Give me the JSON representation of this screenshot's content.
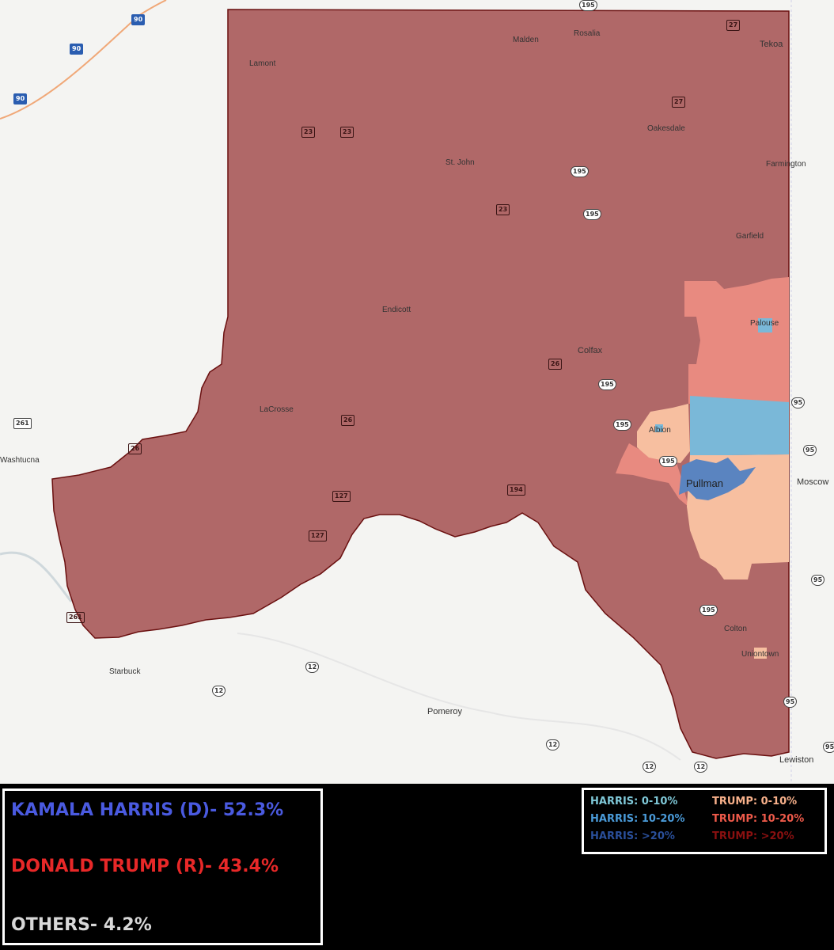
{
  "places": [
    {
      "name": "Lamont"
    },
    {
      "name": "Malden"
    },
    {
      "name": "Rosalia"
    },
    {
      "name": "Tekoa"
    },
    {
      "name": "Oakesdale"
    },
    {
      "name": "St. John"
    },
    {
      "name": "Farmington"
    },
    {
      "name": "Garfield"
    },
    {
      "name": "Endicott"
    },
    {
      "name": "Palouse"
    },
    {
      "name": "Colfax"
    },
    {
      "name": "LaCrosse"
    },
    {
      "name": "Albion"
    },
    {
      "name": "Pullman"
    },
    {
      "name": "Washtucna"
    },
    {
      "name": "Moscow"
    },
    {
      "name": "Colton"
    },
    {
      "name": "Uniontown"
    },
    {
      "name": "Starbuck"
    },
    {
      "name": "Pomeroy"
    },
    {
      "name": "Lewiston"
    }
  ],
  "route_shields": [
    "90",
    "90",
    "90",
    "195",
    "27",
    "27",
    "23",
    "23",
    "195",
    "23",
    "195",
    "26",
    "195",
    "195",
    "26",
    "195",
    "127",
    "194",
    "127",
    "261",
    "261",
    "26",
    "95",
    "95",
    "95",
    "195",
    "12",
    "12",
    "12",
    "12",
    "12",
    "95",
    "95"
  ],
  "results": {
    "harris": "KAMALA HARRIS (D)- 52.3%",
    "trump": "DONALD TRUMP (R)- 43.4%",
    "others": "OTHERS- 4.2%"
  },
  "legend": [
    {
      "label": "HARRIS: 0-10%",
      "color": "#7fc8d8"
    },
    {
      "label": "HARRIS: 10-20%",
      "color": "#4a9ad8"
    },
    {
      "label": "HARRIS: >20%",
      "color": "#2a4f9a"
    },
    {
      "label": "TRUMP: 0-10%",
      "color": "#f7b08a"
    },
    {
      "label": "TRUMP: 10-20%",
      "color": "#ee5a4a"
    },
    {
      "label": "TRUMP: >20%",
      "color": "#8a1010"
    }
  ],
  "colors": {
    "harris_text": "#4a5ae0",
    "trump_text": "#e82828",
    "others_text": "#d8d8d8",
    "county_fill": "#b06868",
    "trump_10_20_fill": "#e88a80",
    "trump_0_10_fill": "#f7bfa0",
    "harris_10_20_fill": "#7ab8d8",
    "harris_gt20_fill": "#5a84c0"
  }
}
